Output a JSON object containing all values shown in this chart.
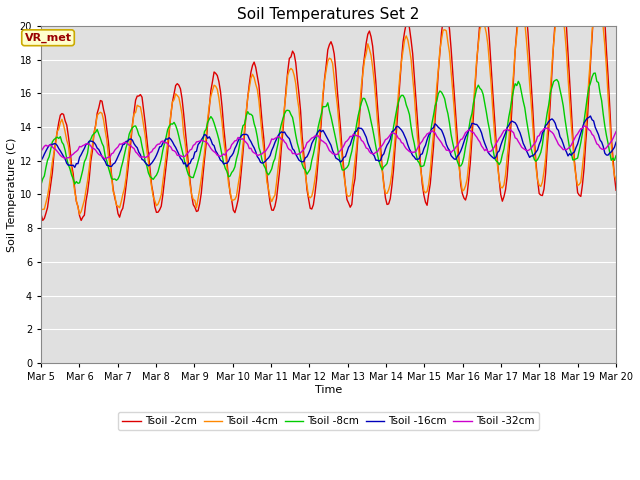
{
  "title": "Soil Temperatures Set 2",
  "xlabel": "Time",
  "ylabel": "Soil Temperature (C)",
  "ylim": [
    0,
    20
  ],
  "yticks": [
    0,
    2,
    4,
    6,
    8,
    10,
    12,
    14,
    16,
    18,
    20
  ],
  "n_days": 15,
  "xtick_labels": [
    "Mar 5",
    "Mar 6",
    "Mar 7",
    "Mar 8",
    "Mar 9",
    "Mar 10",
    "Mar 11",
    "Mar 12",
    "Mar 13",
    "Mar 14",
    "Mar 15",
    "Mar 16",
    "Mar 17",
    "Mar 18",
    "Mar 19",
    "Mar 20"
  ],
  "colors": {
    "tsoil_2cm": "#dd0000",
    "tsoil_4cm": "#ff8800",
    "tsoil_8cm": "#00cc00",
    "tsoil_16cm": "#0000bb",
    "tsoil_32cm": "#cc00cc"
  },
  "legend_labels": [
    "Tsoil -2cm",
    "Tsoil -4cm",
    "Tsoil -8cm",
    "Tsoil -16cm",
    "Tsoil -32cm"
  ],
  "annotation_text": "VR_met",
  "bg_color": "#e0e0e0",
  "fig_bg_color": "#ffffff",
  "grid_color": "#ffffff",
  "linewidth": 1.0,
  "figsize": [
    6.4,
    4.8
  ],
  "dpi": 100
}
